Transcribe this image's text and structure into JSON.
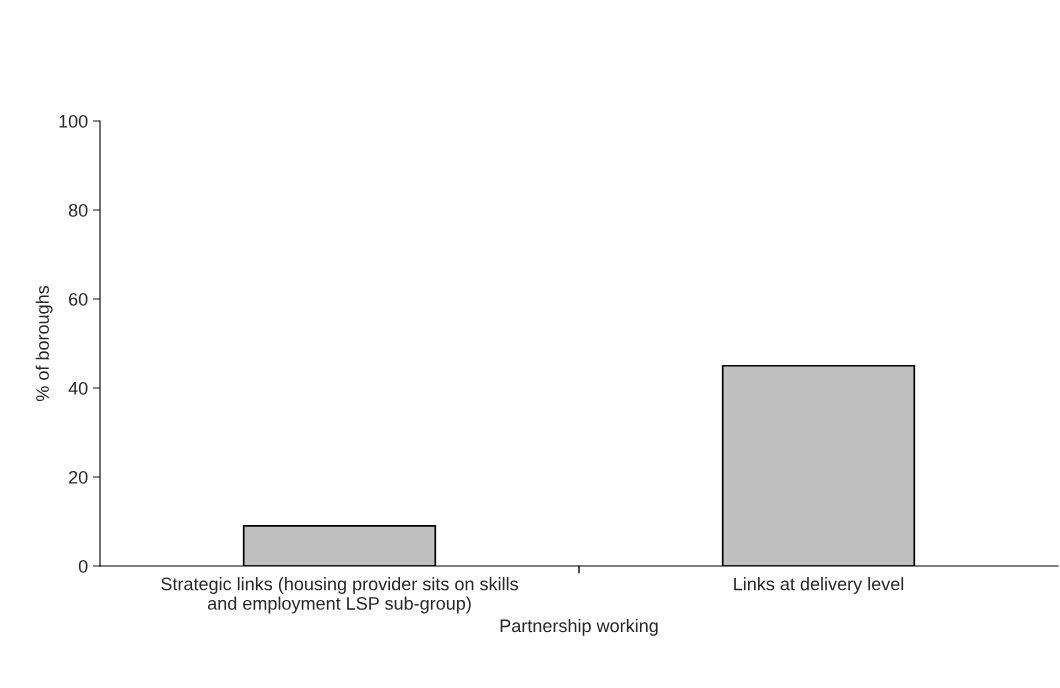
{
  "chart_data": {
    "type": "bar",
    "categories": [
      "Strategic links (housing provider sits on skills\nand employment LSP sub-group)",
      "Links at delivery level"
    ],
    "values": [
      9,
      45
    ],
    "color": "#c0c0c0",
    "xlabel": "Partnership working",
    "ylabel": "% of boroughs",
    "ylim": [
      0,
      100
    ],
    "yticks": [
      0,
      20,
      40,
      60,
      80,
      100
    ],
    "grid": false,
    "legend": false
  }
}
